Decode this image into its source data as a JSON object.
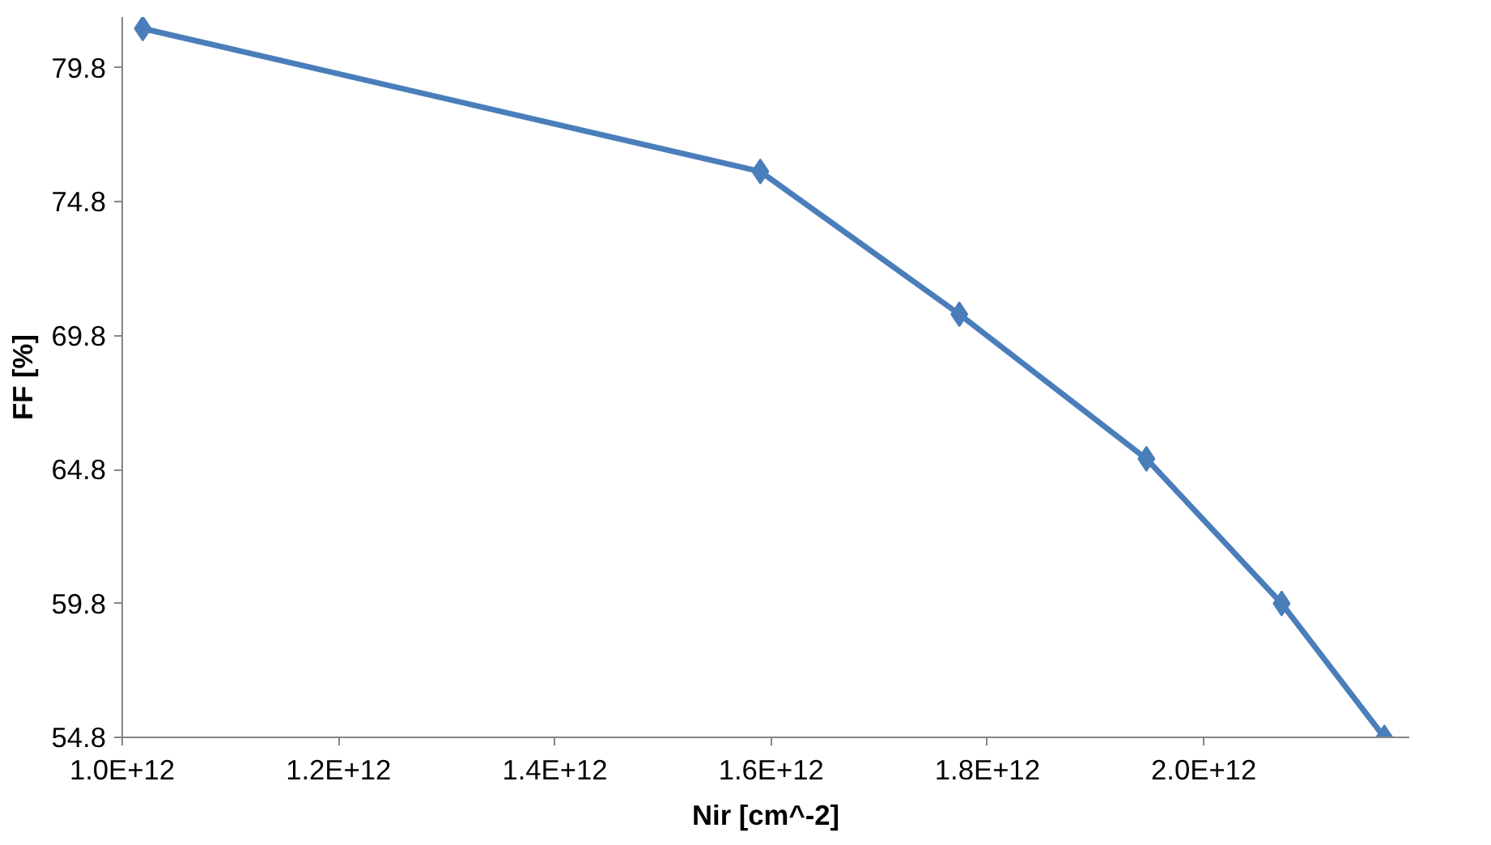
{
  "chart_data": {
    "type": "line",
    "xlabel": "Nir [cm^-2]",
    "ylabel": "FF [%]",
    "x": [
      1019000000000.0,
      1590000000000.0,
      1774000000000.0,
      1947000000000.0,
      2072000000000.0,
      2167000000000.0
    ],
    "series": [
      {
        "color": "#4a7ebb",
        "values": [
          81.27,
          75.93,
          70.6,
          65.2,
          59.8,
          54.8
        ]
      }
    ],
    "xlim": [
      1000000000000.0,
      2190000000000.0
    ],
    "ylim": [
      54.8,
      81.7
    ],
    "xticks": [
      {
        "value": 1000000000000.0,
        "label": "1.0E+12"
      },
      {
        "value": 1200000000000.0,
        "label": "1.2E+12"
      },
      {
        "value": 1400000000000.0,
        "label": "1.4E+12"
      },
      {
        "value": 1600000000000.0,
        "label": "1.6E+12"
      },
      {
        "value": 1800000000000.0,
        "label": "1.8E+12"
      },
      {
        "value": 2000000000000.0,
        "label": "2.0E+12"
      }
    ],
    "yticks": [
      54.8,
      59.8,
      64.8,
      69.8,
      74.8,
      79.8
    ],
    "grid": false,
    "marker": "diamond",
    "line_style": "solid"
  }
}
